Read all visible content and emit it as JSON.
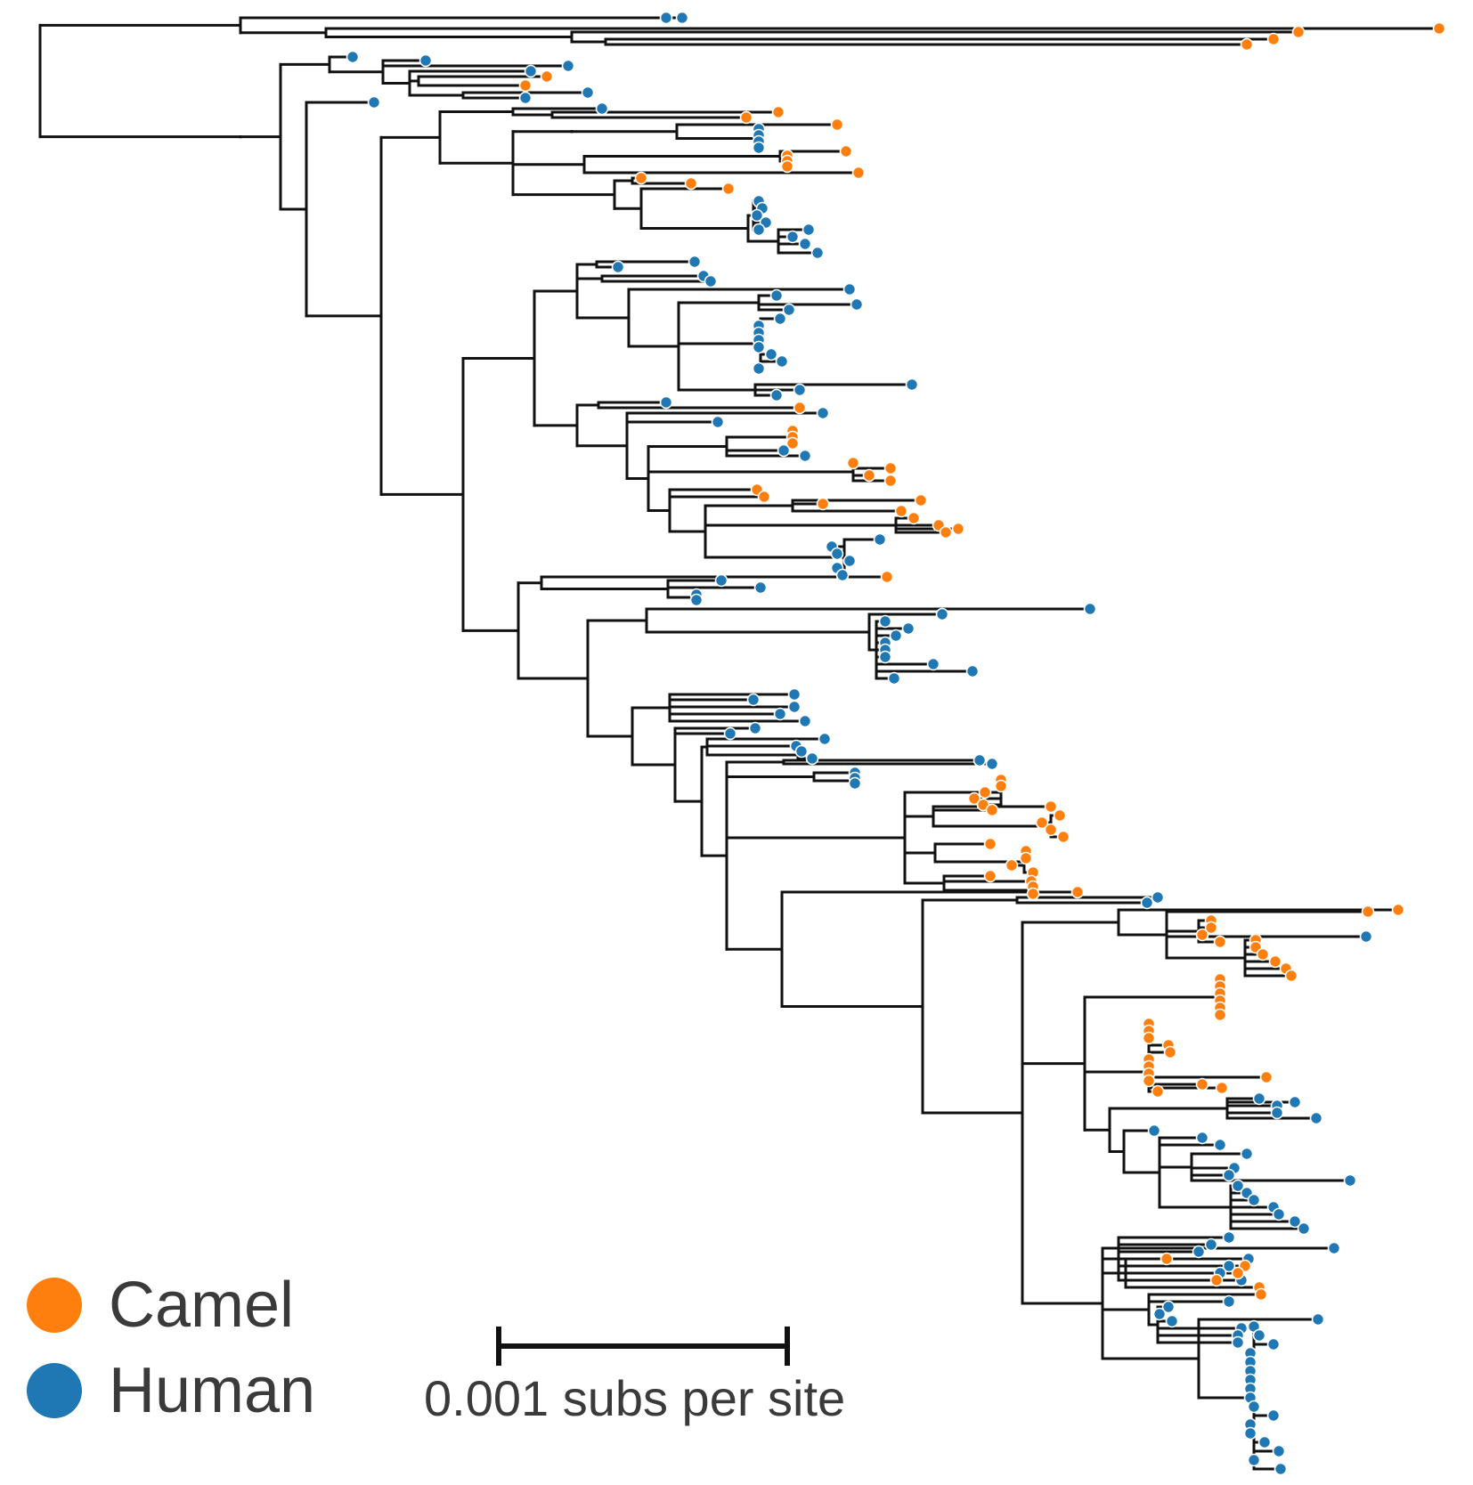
{
  "colors": {
    "camel": "#ff7f0e",
    "human": "#1f77b4",
    "branch": "#111111"
  },
  "legend": [
    {
      "key": "camel",
      "label": "Camel",
      "color": "#ff7f0e"
    },
    {
      "key": "human",
      "label": "Human",
      "color": "#1f77b4"
    }
  ],
  "scale_bar": {
    "value": 0.001,
    "label": "0.001 subs per site"
  }
}
